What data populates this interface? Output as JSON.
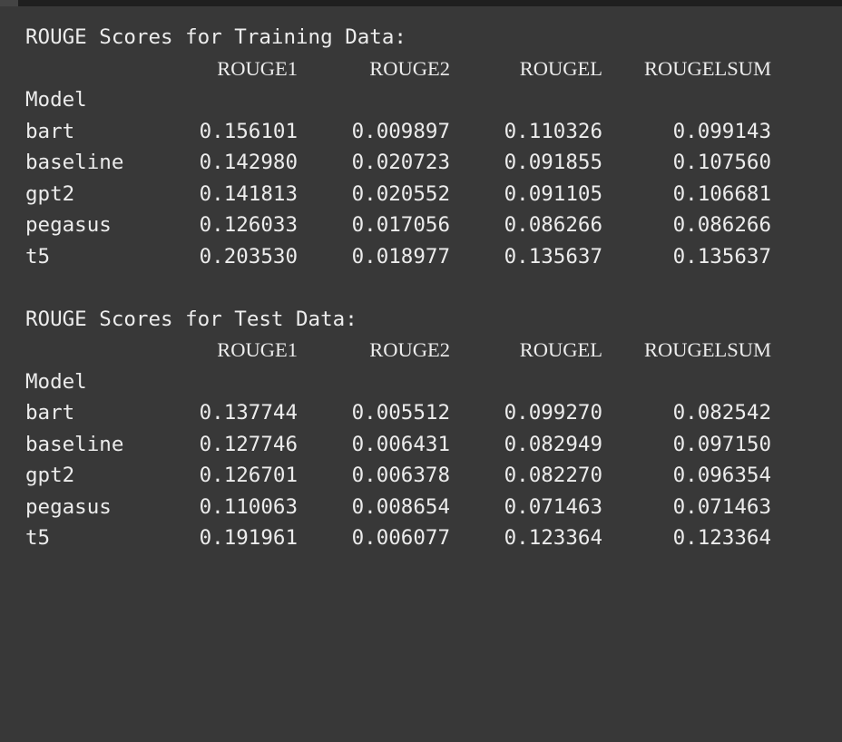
{
  "sections": [
    {
      "title": "ROUGE Scores for Training Data:",
      "columns": [
        "ROUGE1",
        "ROUGE2",
        "ROUGEL",
        "ROUGELSUM"
      ],
      "index_name": "Model",
      "rows": [
        {
          "model": "bart",
          "values": [
            "0.156101",
            "0.009897",
            "0.110326",
            "0.099143"
          ]
        },
        {
          "model": "baseline",
          "values": [
            "0.142980",
            "0.020723",
            "0.091855",
            "0.107560"
          ]
        },
        {
          "model": "gpt2",
          "values": [
            "0.141813",
            "0.020552",
            "0.091105",
            "0.106681"
          ]
        },
        {
          "model": "pegasus",
          "values": [
            "0.126033",
            "0.017056",
            "0.086266",
            "0.086266"
          ]
        },
        {
          "model": "t5",
          "values": [
            "0.203530",
            "0.018977",
            "0.135637",
            "0.135637"
          ]
        }
      ]
    },
    {
      "title": "ROUGE Scores for Test Data:",
      "columns": [
        "ROUGE1",
        "ROUGE2",
        "ROUGEL",
        "ROUGELSUM"
      ],
      "index_name": "Model",
      "rows": [
        {
          "model": "bart",
          "values": [
            "0.137744",
            "0.005512",
            "0.099270",
            "0.082542"
          ]
        },
        {
          "model": "baseline",
          "values": [
            "0.127746",
            "0.006431",
            "0.082949",
            "0.097150"
          ]
        },
        {
          "model": "gpt2",
          "values": [
            "0.126701",
            "0.006378",
            "0.082270",
            "0.096354"
          ]
        },
        {
          "model": "pegasus",
          "values": [
            "0.110063",
            "0.008654",
            "0.071463",
            "0.071463"
          ]
        },
        {
          "model": "t5",
          "values": [
            "0.191961",
            "0.006077",
            "0.123364",
            "0.123364"
          ]
        }
      ]
    }
  ]
}
